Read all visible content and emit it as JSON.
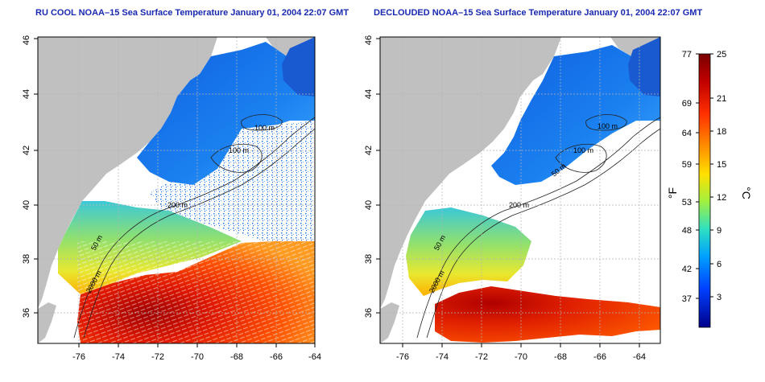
{
  "left_map": {
    "title": "RU COOL NOAA–15 Sea Surface Temperature January 01, 2004 22:07 GMT",
    "x_ticks": [
      "-76",
      "-74",
      "-72",
      "-70",
      "-68",
      "-66",
      "-64"
    ],
    "y_ticks": [
      "36",
      "38",
      "40",
      "42",
      "44",
      "46"
    ],
    "isobath_labels": [
      "100 m",
      "100 m",
      "200 m",
      "50 m",
      "2000 m"
    ]
  },
  "right_map": {
    "title": "DECLOUDED NOAA–15 Sea Surface Temperature January 01, 2004 22:07 GMT",
    "x_ticks": [
      "-76",
      "-74",
      "-72",
      "-70",
      "-68",
      "-66",
      "-64"
    ],
    "y_ticks": [
      "36",
      "38",
      "40",
      "42",
      "44",
      "46"
    ],
    "isobath_labels": [
      "100 m",
      "100 m",
      "50 m",
      "200 m",
      "50 m",
      "2000 m"
    ]
  },
  "colorbar": {
    "fahrenheit_unit": "°F",
    "celsius_unit": "°C",
    "fahrenheit_ticks": [
      "77",
      "69",
      "64",
      "59",
      "53",
      "48",
      "42",
      "37"
    ],
    "celsius_ticks": [
      "25",
      "21",
      "18",
      "15",
      "12",
      "9",
      "6",
      "3"
    ],
    "colors": [
      "#7a0000",
      "#c00000",
      "#ff3000",
      "#ff9000",
      "#ffe000",
      "#a0f040",
      "#30e0c0",
      "#00a0ff",
      "#0040ff",
      "#00008a"
    ]
  },
  "colors": {
    "land": "#c0c0c0",
    "title_blue": "#1a2ab0",
    "grid": "#b4b4b4"
  }
}
